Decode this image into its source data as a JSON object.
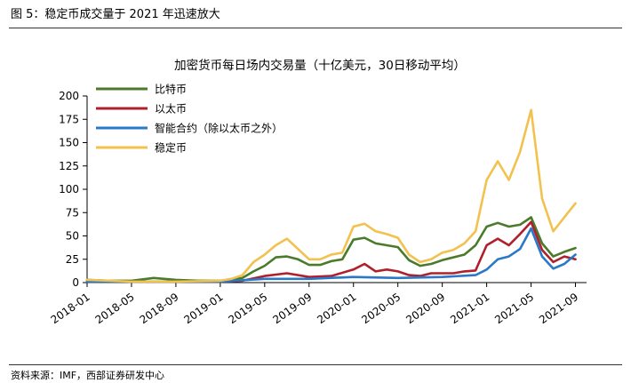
{
  "figure": {
    "label": "图 5：稳定币成交量于 2021 年迅速放大",
    "source": "资料来源：IMF，西部证券研发中心"
  },
  "chart_data": {
    "type": "line",
    "title": "加密货币每日场内交易量（十亿美元，30日移动平均）",
    "xlabel": "",
    "ylabel": "",
    "ylim": [
      0,
      200
    ],
    "yticks": [
      0,
      25,
      50,
      75,
      100,
      125,
      150,
      175,
      200
    ],
    "xlim": [
      "2018-01",
      "2021-10"
    ],
    "xticks": [
      "2018-01",
      "2018-05",
      "2018-09",
      "2019-01",
      "2019-05",
      "2019-09",
      "2020-01",
      "2020-05",
      "2020-09",
      "2021-01",
      "2021-05",
      "2021-09"
    ],
    "grid": false,
    "legend_position": "top-left",
    "series": [
      {
        "name": "比特币",
        "color": "#4a7a2a",
        "points": [
          [
            "2018-01",
            3
          ],
          [
            "2018-03",
            2
          ],
          [
            "2018-05",
            2
          ],
          [
            "2018-07",
            5
          ],
          [
            "2018-09",
            3
          ],
          [
            "2018-11",
            2
          ],
          [
            "2019-01",
            2
          ],
          [
            "2019-02",
            3
          ],
          [
            "2019-03",
            5
          ],
          [
            "2019-04",
            12
          ],
          [
            "2019-05",
            18
          ],
          [
            "2019-06",
            27
          ],
          [
            "2019-07",
            28
          ],
          [
            "2019-08",
            25
          ],
          [
            "2019-09",
            19
          ],
          [
            "2019-10",
            19
          ],
          [
            "2019-11",
            23
          ],
          [
            "2019-12",
            25
          ],
          [
            "2020-01",
            46
          ],
          [
            "2020-02",
            48
          ],
          [
            "2020-03",
            42
          ],
          [
            "2020-04",
            40
          ],
          [
            "2020-05",
            38
          ],
          [
            "2020-06",
            24
          ],
          [
            "2020-07",
            18
          ],
          [
            "2020-08",
            20
          ],
          [
            "2020-09",
            24
          ],
          [
            "2020-10",
            27
          ],
          [
            "2020-11",
            30
          ],
          [
            "2020-12",
            40
          ],
          [
            "2021-01",
            60
          ],
          [
            "2021-02",
            64
          ],
          [
            "2021-03",
            60
          ],
          [
            "2021-04",
            62
          ],
          [
            "2021-05",
            70
          ],
          [
            "2021-06",
            42
          ],
          [
            "2021-07",
            28
          ],
          [
            "2021-08",
            33
          ],
          [
            "2021-09",
            37
          ]
        ]
      },
      {
        "name": "以太币",
        "color": "#b0202c",
        "points": [
          [
            "2018-01",
            2
          ],
          [
            "2018-05",
            1
          ],
          [
            "2018-09",
            1
          ],
          [
            "2019-01",
            1
          ],
          [
            "2019-03",
            2
          ],
          [
            "2019-05",
            7
          ],
          [
            "2019-07",
            10
          ],
          [
            "2019-09",
            6
          ],
          [
            "2019-11",
            7
          ],
          [
            "2020-01",
            14
          ],
          [
            "2020-02",
            20
          ],
          [
            "2020-03",
            12
          ],
          [
            "2020-04",
            14
          ],
          [
            "2020-05",
            12
          ],
          [
            "2020-06",
            8
          ],
          [
            "2020-07",
            7
          ],
          [
            "2020-08",
            10
          ],
          [
            "2020-09",
            10
          ],
          [
            "2020-10",
            10
          ],
          [
            "2020-11",
            12
          ],
          [
            "2020-12",
            13
          ],
          [
            "2021-01",
            40
          ],
          [
            "2021-02",
            47
          ],
          [
            "2021-03",
            40
          ],
          [
            "2021-04",
            52
          ],
          [
            "2021-05",
            65
          ],
          [
            "2021-06",
            35
          ],
          [
            "2021-07",
            22
          ],
          [
            "2021-08",
            28
          ],
          [
            "2021-09",
            25
          ]
        ]
      },
      {
        "name": "智能合约（除以太币之外）",
        "color": "#2a78c8",
        "points": [
          [
            "2018-01",
            1
          ],
          [
            "2018-05",
            1
          ],
          [
            "2018-09",
            1
          ],
          [
            "2019-01",
            1
          ],
          [
            "2019-05",
            4
          ],
          [
            "2019-09",
            4
          ],
          [
            "2020-01",
            6
          ],
          [
            "2020-05",
            5
          ],
          [
            "2020-09",
            6
          ],
          [
            "2020-12",
            8
          ],
          [
            "2021-01",
            14
          ],
          [
            "2021-02",
            25
          ],
          [
            "2021-03",
            28
          ],
          [
            "2021-04",
            36
          ],
          [
            "2021-05",
            58
          ],
          [
            "2021-06",
            28
          ],
          [
            "2021-07",
            15
          ],
          [
            "2021-08",
            20
          ],
          [
            "2021-09",
            30
          ]
        ]
      },
      {
        "name": "稳定币",
        "color": "#f2c14e",
        "points": [
          [
            "2018-01",
            3
          ],
          [
            "2018-05",
            1
          ],
          [
            "2018-09",
            1
          ],
          [
            "2019-01",
            2
          ],
          [
            "2019-02",
            4
          ],
          [
            "2019-03",
            8
          ],
          [
            "2019-04",
            22
          ],
          [
            "2019-05",
            30
          ],
          [
            "2019-06",
            40
          ],
          [
            "2019-07",
            47
          ],
          [
            "2019-08",
            36
          ],
          [
            "2019-09",
            25
          ],
          [
            "2019-10",
            25
          ],
          [
            "2019-11",
            30
          ],
          [
            "2019-12",
            32
          ],
          [
            "2020-01",
            60
          ],
          [
            "2020-02",
            63
          ],
          [
            "2020-03",
            55
          ],
          [
            "2020-04",
            52
          ],
          [
            "2020-05",
            48
          ],
          [
            "2020-06",
            30
          ],
          [
            "2020-07",
            22
          ],
          [
            "2020-08",
            25
          ],
          [
            "2020-09",
            32
          ],
          [
            "2020-10",
            35
          ],
          [
            "2020-11",
            42
          ],
          [
            "2020-12",
            55
          ],
          [
            "2021-01",
            110
          ],
          [
            "2021-02",
            130
          ],
          [
            "2021-03",
            110
          ],
          [
            "2021-04",
            140
          ],
          [
            "2021-05",
            185
          ],
          [
            "2021-06",
            90
          ],
          [
            "2021-07",
            55
          ],
          [
            "2021-08",
            70
          ],
          [
            "2021-09",
            85
          ]
        ]
      }
    ]
  }
}
